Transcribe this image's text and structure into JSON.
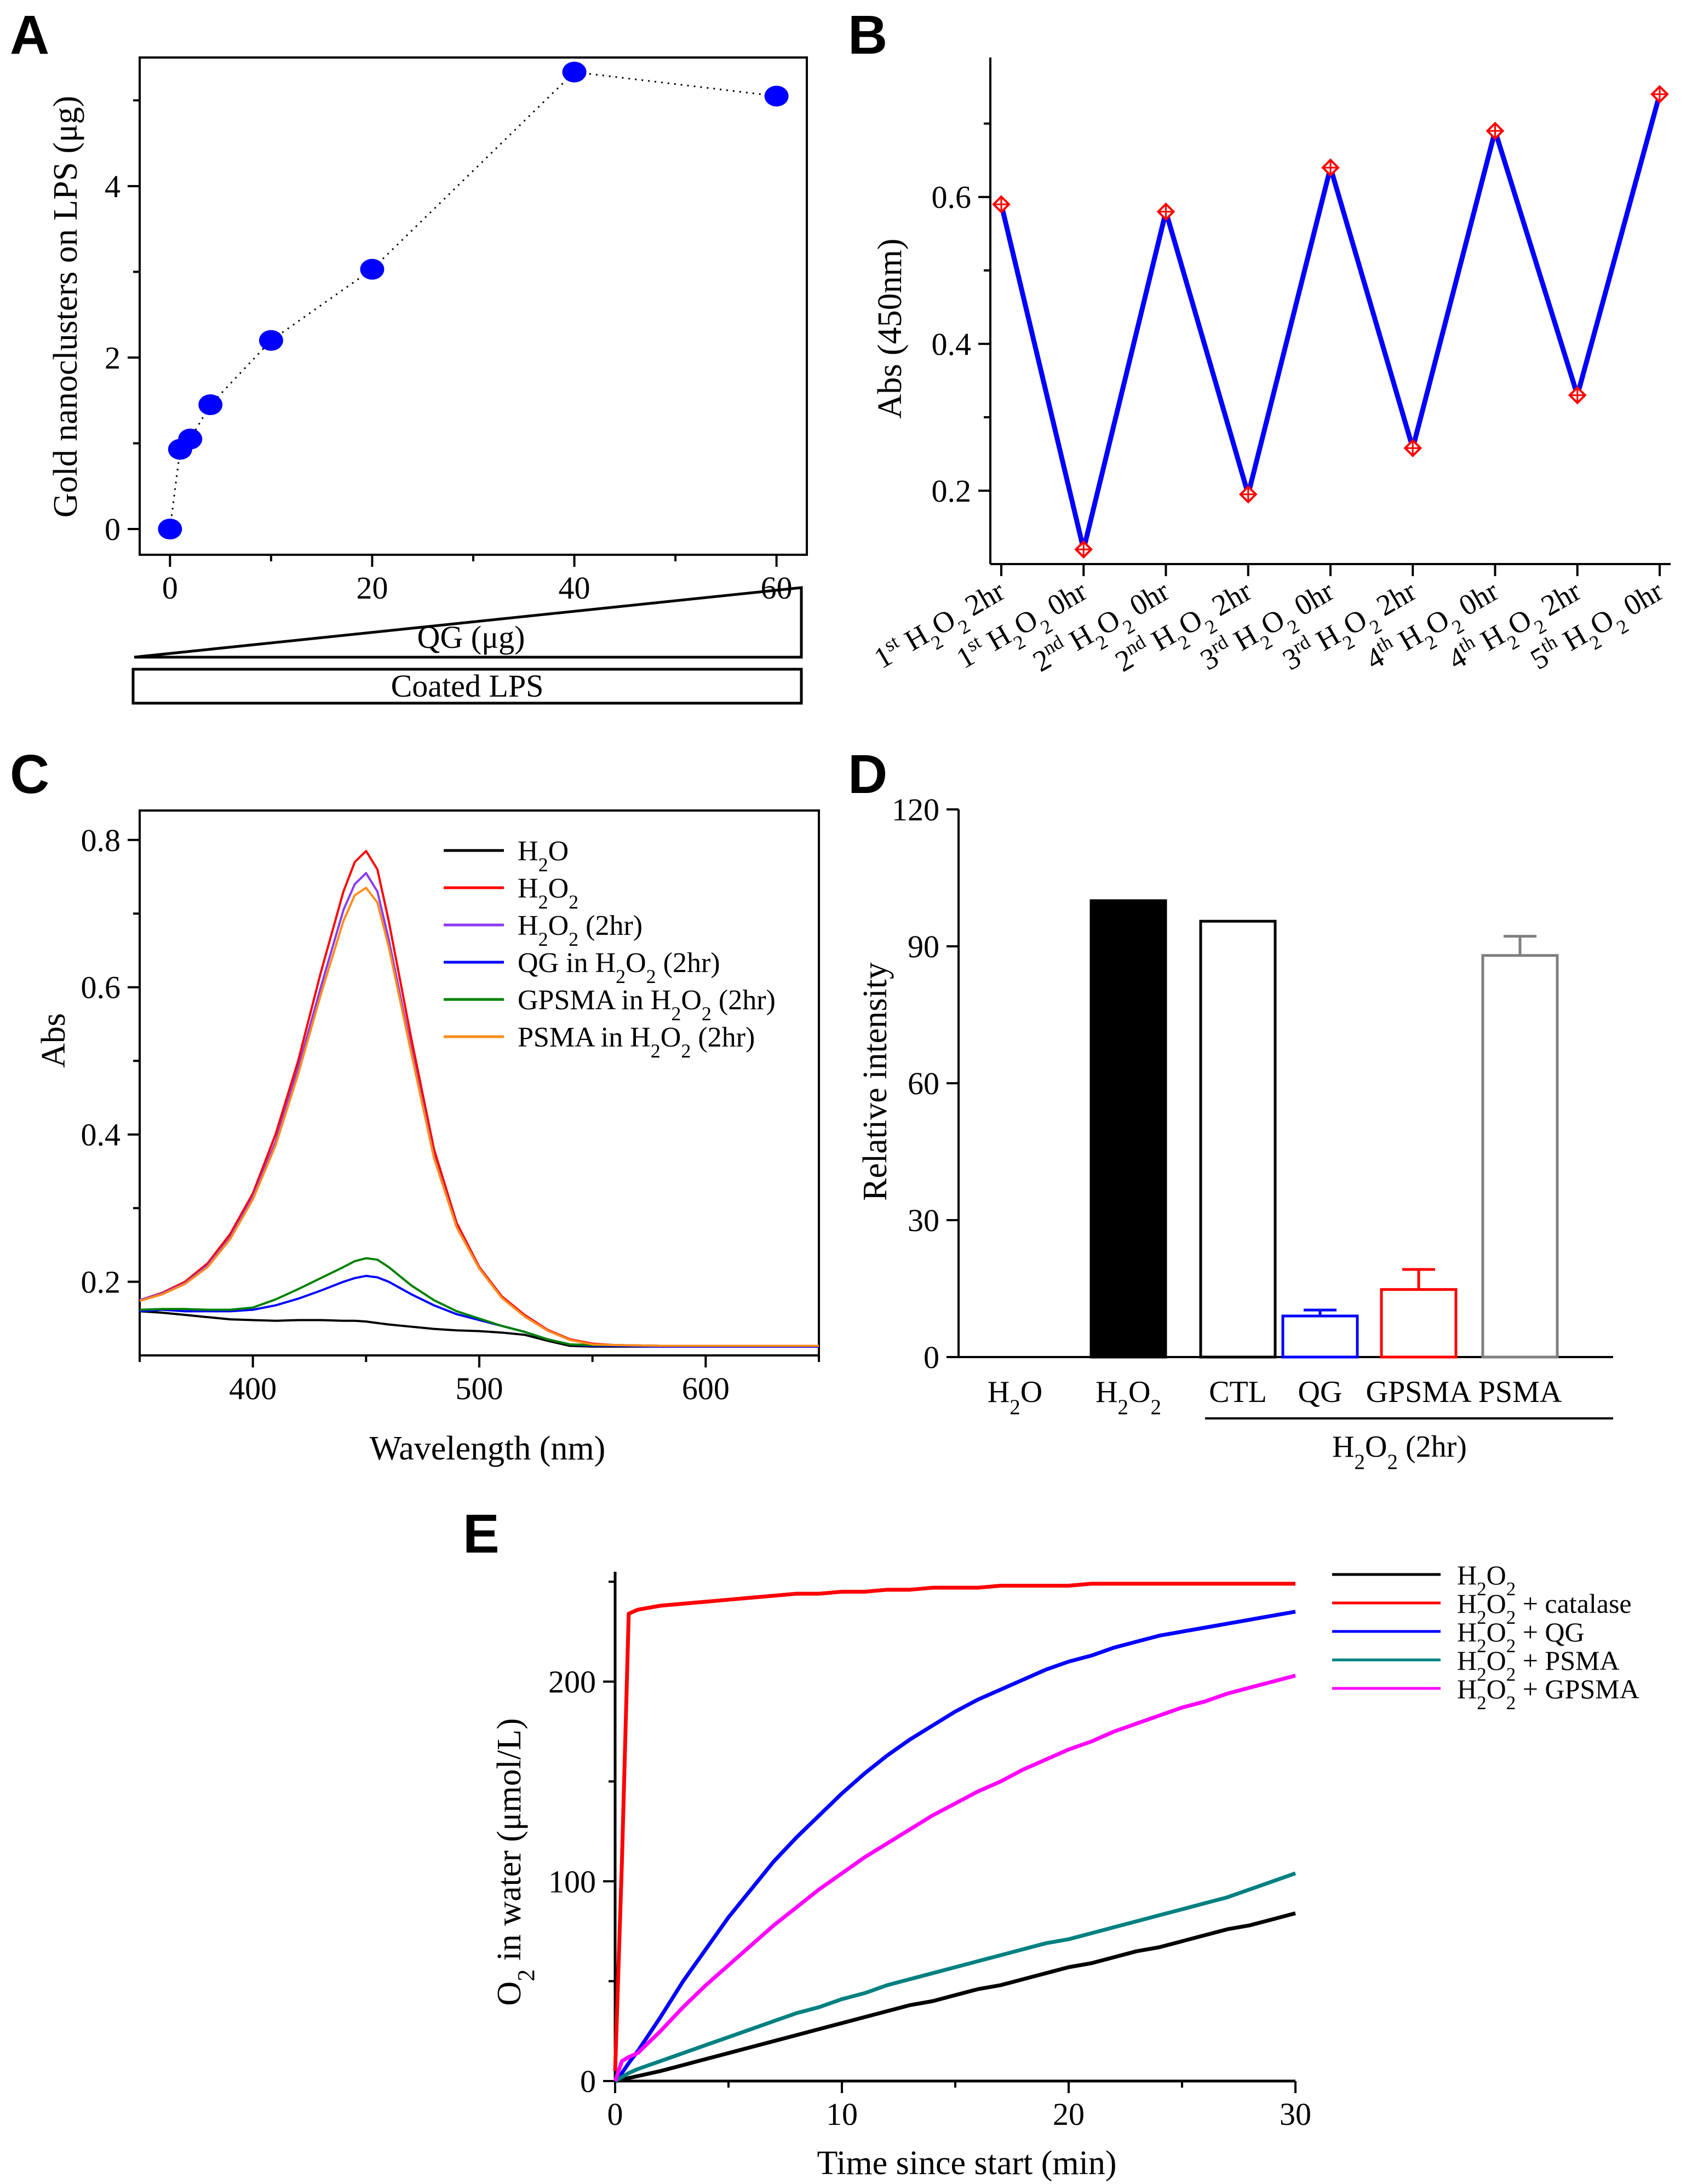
{
  "panel_labels": {
    "A": "A",
    "B": "B",
    "C": "C",
    "D": "D",
    "E": "E"
  },
  "chart_data": [
    {
      "panel": "A",
      "type": "scatter",
      "xlabel": "",
      "ylabel": "Gold nanoclusters on LPS (μg)",
      "xlim": [
        -3,
        63
      ],
      "ylim": [
        -0.3,
        5.5
      ],
      "xticks": [
        0,
        20,
        40,
        60
      ],
      "yticks": [
        0,
        2,
        4
      ],
      "series": [
        {
          "name": "Gold nanoclusters",
          "color": "#0000ff",
          "line_style": "dotted",
          "x": [
            0,
            1,
            2,
            4,
            10,
            20,
            40,
            60
          ],
          "y": [
            0,
            0.93,
            1.05,
            1.45,
            2.2,
            3.03,
            5.33,
            5.05
          ]
        }
      ],
      "annotations": {
        "gradient_label": "QG (μg)",
        "bar_label": "Coated LPS"
      }
    },
    {
      "panel": "B",
      "type": "line",
      "xlabel": "",
      "ylabel": "Abs (450nm)",
      "ylim": [
        0.1,
        0.79
      ],
      "yticks": [
        0.2,
        0.4,
        0.6
      ],
      "categories": [
        {
          "cycle": "1",
          "sup": "st",
          "time": "2hr"
        },
        {
          "cycle": "1",
          "sup": "st",
          "time": "0hr"
        },
        {
          "cycle": "2",
          "sup": "nd",
          "time": "0hr"
        },
        {
          "cycle": "2",
          "sup": "nd",
          "time": "2hr"
        },
        {
          "cycle": "3",
          "sup": "rd",
          "time": "0hr"
        },
        {
          "cycle": "3",
          "sup": "rd",
          "time": "2hr"
        },
        {
          "cycle": "4",
          "sup": "th",
          "time": "0hr"
        },
        {
          "cycle": "4",
          "sup": "th",
          "time": "2hr"
        },
        {
          "cycle": "5",
          "sup": "th",
          "time": "0hr"
        }
      ],
      "category_prefix": "H",
      "category_sub": "2",
      "category_mid": "O",
      "series": [
        {
          "name": "Abs",
          "color": "#0000ff",
          "marker_color": "#ff0000",
          "values": [
            0.59,
            0.12,
            0.58,
            0.195,
            0.64,
            0.258,
            0.69,
            0.33,
            0.74
          ]
        }
      ]
    },
    {
      "panel": "C",
      "type": "line",
      "xlabel": "Wavelength (nm)",
      "ylabel": "Abs",
      "xlim": [
        350,
        650
      ],
      "ylim": [
        0.1,
        0.84
      ],
      "xticks": [
        400,
        500,
        600
      ],
      "yticks": [
        0.2,
        0.4,
        0.6,
        0.8
      ],
      "x": [
        350,
        360,
        370,
        380,
        390,
        400,
        410,
        420,
        430,
        440,
        445,
        450,
        455,
        460,
        470,
        480,
        490,
        500,
        510,
        520,
        530,
        540,
        550,
        560,
        580,
        600,
        620,
        650
      ],
      "series": [
        {
          "name": "H2O",
          "legend": [
            "H",
            "2",
            "O",
            ""
          ],
          "color": "#000000",
          "values": [
            0.16,
            0.158,
            0.155,
            0.152,
            0.149,
            0.148,
            0.147,
            0.148,
            0.148,
            0.147,
            0.147,
            0.146,
            0.144,
            0.142,
            0.139,
            0.136,
            0.134,
            0.133,
            0.131,
            0.128,
            0.12,
            0.113,
            0.112,
            0.112,
            0.112,
            0.112,
            0.112,
            0.112
          ]
        },
        {
          "name": "H2O2",
          "legend": [
            "H",
            "2",
            "O",
            "2",
            ""
          ],
          "color": "#ff0000",
          "values": [
            0.175,
            0.185,
            0.2,
            0.225,
            0.265,
            0.32,
            0.4,
            0.5,
            0.62,
            0.73,
            0.77,
            0.785,
            0.76,
            0.69,
            0.53,
            0.38,
            0.28,
            0.22,
            0.18,
            0.155,
            0.135,
            0.122,
            0.116,
            0.114,
            0.113,
            0.113,
            0.113,
            0.113
          ]
        },
        {
          "name": "H2O2 (2hr)",
          "legend": [
            "H",
            "2",
            "O",
            "2",
            " (2hr)"
          ],
          "color": "#8b3cf0",
          "values": [
            0.175,
            0.184,
            0.198,
            0.222,
            0.26,
            0.315,
            0.39,
            0.49,
            0.6,
            0.705,
            0.74,
            0.755,
            0.73,
            0.665,
            0.515,
            0.37,
            0.275,
            0.218,
            0.178,
            0.153,
            0.134,
            0.121,
            0.115,
            0.114,
            0.113,
            0.113,
            0.113,
            0.113
          ]
        },
        {
          "name": "QG in H2O2 (2hr)",
          "legend": [
            "QG in H",
            "2",
            "O",
            "2",
            " (2hr)"
          ],
          "color": "#0000ff",
          "values": [
            0.16,
            0.162,
            0.16,
            0.16,
            0.16,
            0.162,
            0.168,
            0.177,
            0.188,
            0.2,
            0.205,
            0.208,
            0.206,
            0.2,
            0.183,
            0.168,
            0.156,
            0.148,
            0.14,
            0.132,
            0.122,
            0.115,
            0.113,
            0.113,
            0.112,
            0.112,
            0.112,
            0.112
          ]
        },
        {
          "name": "GPSMA in H2O2 (2hr)",
          "legend": [
            "GPSMA in H",
            "2",
            "O",
            "2",
            " (2hr)"
          ],
          "color": "#008000",
          "values": [
            0.162,
            0.163,
            0.163,
            0.162,
            0.162,
            0.165,
            0.176,
            0.19,
            0.205,
            0.22,
            0.228,
            0.232,
            0.23,
            0.22,
            0.195,
            0.175,
            0.16,
            0.15,
            0.14,
            0.132,
            0.122,
            0.115,
            0.114,
            0.114,
            0.113,
            0.113,
            0.113,
            0.113
          ]
        },
        {
          "name": "PSMA in H2O2 (2hr)",
          "legend": [
            "PSMA in H",
            "2",
            "O",
            "2",
            " (2hr)"
          ],
          "color": "#ff8c1a",
          "values": [
            0.174,
            0.183,
            0.197,
            0.22,
            0.258,
            0.312,
            0.385,
            0.482,
            0.59,
            0.69,
            0.725,
            0.735,
            0.715,
            0.655,
            0.51,
            0.368,
            0.274,
            0.218,
            0.178,
            0.153,
            0.134,
            0.121,
            0.115,
            0.114,
            0.113,
            0.113,
            0.113,
            0.113
          ]
        }
      ]
    },
    {
      "panel": "D",
      "type": "bar",
      "xlabel": "",
      "ylabel": "Relative intensity",
      "ylim": [
        0,
        120
      ],
      "yticks": [
        0,
        30,
        60,
        90,
        120
      ],
      "categories": [
        "H2O",
        "H2O2",
        "CTL",
        "QG",
        "GPSMA",
        "PSMA"
      ],
      "category_labels": [
        [
          "H",
          "2",
          "O",
          ""
        ],
        [
          "H",
          "2",
          "O",
          "2"
        ],
        [
          "CTL"
        ],
        [
          "QG"
        ],
        [
          "GPSMA"
        ],
        [
          "PSMA"
        ]
      ],
      "values": [
        0,
        100,
        95.5,
        9,
        14.8,
        88
      ],
      "errors": [
        0,
        0,
        0,
        1.3,
        4.4,
        4.2
      ],
      "bar_colors": [
        "#000000",
        "#000000",
        "#000000",
        "#0000ff",
        "#ff0000",
        "#808080"
      ],
      "bar_filled": [
        false,
        true,
        false,
        false,
        false,
        false
      ],
      "group_label": [
        "H",
        "2",
        "O",
        "2",
        " (2hr)"
      ]
    },
    {
      "panel": "E",
      "type": "line",
      "xlabel": "Time since start (min)",
      "ylabel_parts": [
        "O",
        "2",
        " in water (μmol/L)"
      ],
      "xlim": [
        0,
        30
      ],
      "ylim": [
        0,
        255
      ],
      "xticks": [
        0,
        10,
        20,
        30
      ],
      "yticks": [
        0,
        100,
        200
      ],
      "x": [
        0,
        0.3,
        0.6,
        1,
        2,
        3,
        4,
        5,
        6,
        7,
        8,
        9,
        10,
        11,
        12,
        13,
        14,
        15,
        16,
        17,
        18,
        19,
        20,
        21,
        22,
        23,
        24,
        25,
        26,
        27,
        28,
        29,
        30
      ],
      "series": [
        {
          "name": "H2O2",
          "legend": [
            "H",
            "2",
            "O",
            "2",
            ""
          ],
          "color": "#000000",
          "values": [
            0,
            0.7,
            1.5,
            2.5,
            5,
            8,
            11,
            14,
            17,
            20,
            23,
            26,
            29,
            32,
            35,
            38,
            40,
            43,
            46,
            48,
            51,
            54,
            57,
            59,
            62,
            65,
            67,
            70,
            73,
            76,
            78,
            81,
            84
          ]
        },
        {
          "name": "H2O2 + catalase",
          "legend": [
            "H",
            "2",
            "O",
            "2",
            " + catalase"
          ],
          "color": "#ff0000",
          "values": [
            5,
            110,
            234,
            236,
            238,
            239,
            240,
            241,
            242,
            243,
            244,
            244,
            245,
            245,
            246,
            246,
            247,
            247,
            247,
            248,
            248,
            248,
            248,
            249,
            249,
            249,
            249,
            249,
            249,
            249,
            249,
            249,
            249
          ]
        },
        {
          "name": "H2O2 + QG",
          "legend": [
            "H",
            "2",
            "O",
            "2",
            " + QG"
          ],
          "color": "#0000ff",
          "values": [
            0,
            4,
            9,
            15,
            32,
            50,
            66,
            82,
            96,
            110,
            122,
            133,
            144,
            154,
            163,
            171,
            178,
            185,
            191,
            196,
            201,
            206,
            210,
            213,
            217,
            220,
            223,
            225,
            227,
            229,
            231,
            233,
            235
          ]
        },
        {
          "name": "H2O2 + PSMA",
          "legend": [
            "H",
            "2",
            "O",
            "2",
            " + PSMA"
          ],
          "color": "#008080",
          "values": [
            0,
            2,
            4,
            6,
            10,
            14,
            18,
            22,
            26,
            30,
            34,
            37,
            41,
            44,
            48,
            51,
            54,
            57,
            60,
            63,
            66,
            69,
            71,
            74,
            77,
            80,
            83,
            86,
            89,
            92,
            96,
            100,
            104
          ]
        },
        {
          "name": "H2O2 + GPSMA",
          "legend": [
            "H",
            "2",
            "O",
            "2",
            " + GPSMA"
          ],
          "color": "#ff00ff",
          "values": [
            0,
            10,
            12,
            14,
            25,
            37,
            48,
            58,
            68,
            78,
            87,
            96,
            104,
            112,
            119,
            126,
            133,
            139,
            145,
            150,
            156,
            161,
            166,
            170,
            175,
            179,
            183,
            187,
            190,
            194,
            197,
            200,
            203
          ]
        }
      ]
    }
  ]
}
